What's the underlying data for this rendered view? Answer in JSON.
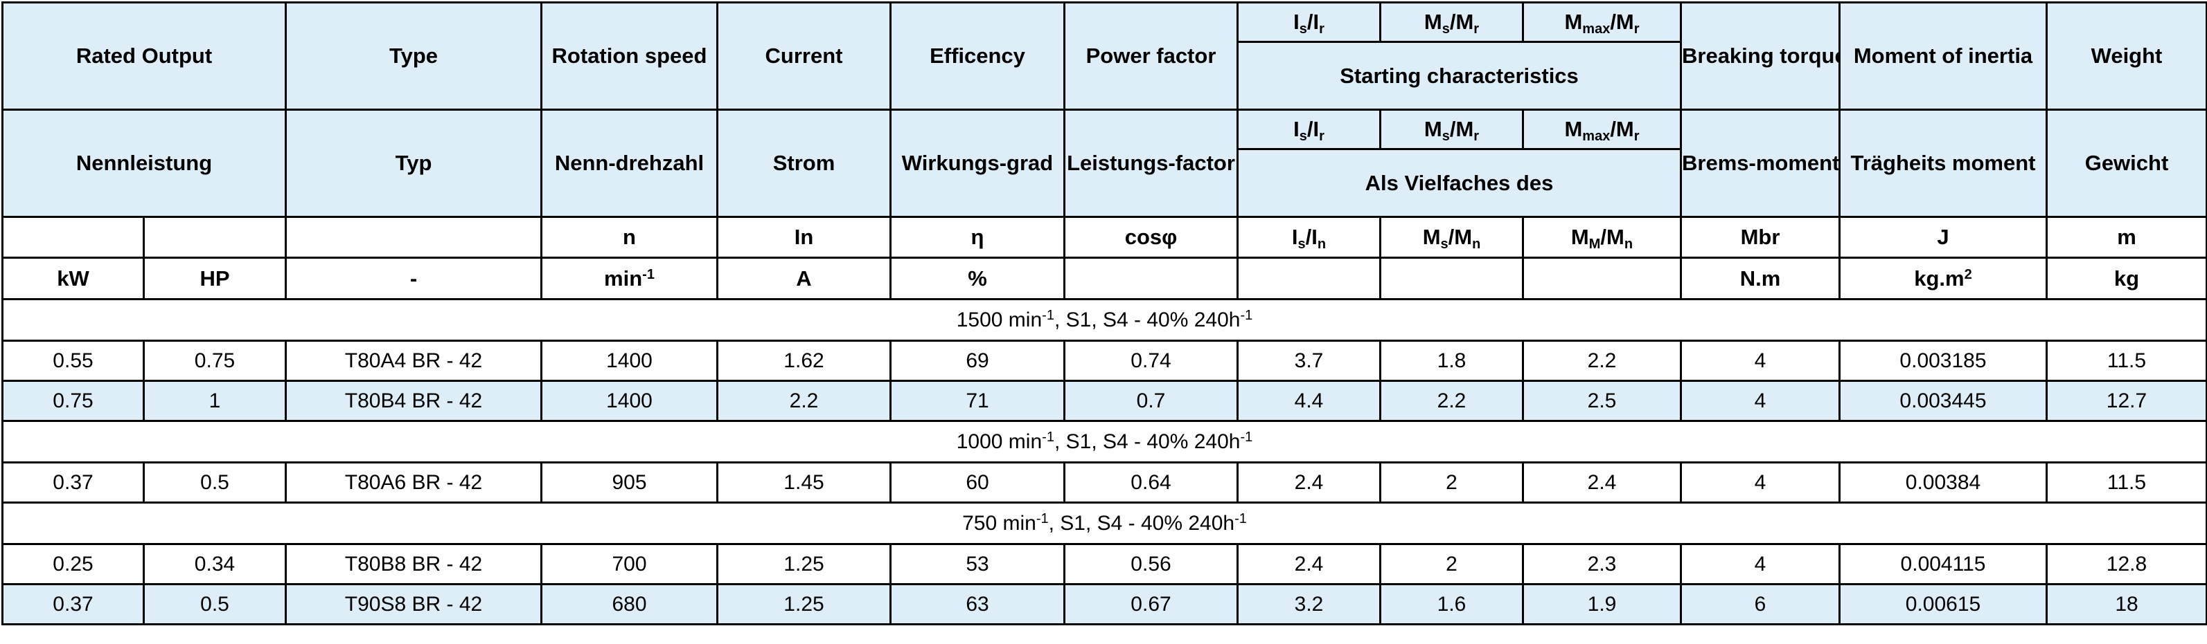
{
  "header_en": {
    "rated_output": "Rated Output",
    "type": "Type",
    "rotation_speed": "Rotation speed",
    "current": "Current",
    "efficiency": "Efficency",
    "power_factor": "Power factor",
    "ratio_is": "I",
    "ratio_is_sub1": "s",
    "ratio_is_mid": "/I",
    "ratio_is_sub2": "r",
    "ratio_ms": "M",
    "ratio_ms_sub1": "s",
    "ratio_ms_mid": "/M",
    "ratio_ms_sub2": "r",
    "ratio_mmax": "M",
    "ratio_mmax_sub1": "max",
    "ratio_mmax_mid": "/M",
    "ratio_mmax_sub2": "r",
    "starting_characteristics": "Starting characteristics",
    "breaking_torque": "Breaking torque",
    "moment_of_inertia": "Moment of inertia",
    "weight": "Weight"
  },
  "header_de": {
    "nennleistung": "Nennleistung",
    "typ": "Typ",
    "nenndrehzahl": "Nenn-drehzahl",
    "strom": "Strom",
    "wirkungsgrad": "Wirkungs-grad",
    "leistungsfactor": "Leistungs-factor",
    "als_vielfaches": "Als Vielfaches des",
    "bremsmoment": "Brems-moment",
    "traegheitsmoment": "Trägheits moment",
    "gewicht": "Gewicht"
  },
  "symbols": {
    "n": "n",
    "in": "In",
    "eta": "η",
    "cosphi": "cosφ",
    "is_in": "I",
    "is_in_sub1": "s",
    "is_in_mid": "/I",
    "is_in_sub2": "n",
    "ms_mn": "M",
    "ms_mn_sub1": "s",
    "ms_mn_mid": "/M",
    "ms_mn_sub2": "n",
    "mm_mn": "M",
    "mm_mn_sub1": "M",
    "mm_mn_mid": "/M",
    "mm_mn_sub2": "n",
    "mbr": "Mbr",
    "j": "J",
    "m": "m"
  },
  "units": {
    "kw": "kW",
    "hp": "HP",
    "type": "-",
    "speed": "min",
    "speed_sup": "-1",
    "current": "A",
    "efficiency": "%",
    "torque": "N.m",
    "inertia": "kg.m",
    "inertia_sup": "2",
    "weight": "kg"
  },
  "sections": [
    {
      "label": "1500 min",
      "label_sup": "-1",
      "label_rest": ", S1, S4 - 40% 240h",
      "label_sup2": "-1",
      "rows": [
        [
          "0.55",
          "0.75",
          "T80A4 BR - 42",
          "1400",
          "1.62",
          "69",
          "0.74",
          "3.7",
          "1.8",
          "2.2",
          "4",
          "0.003185",
          "11.5"
        ],
        [
          "0.75",
          "1",
          "T80B4 BR - 42",
          "1400",
          "2.2",
          "71",
          "0.7",
          "4.4",
          "2.2",
          "2.5",
          "4",
          "0.003445",
          "12.7"
        ]
      ]
    },
    {
      "label": "1000 min",
      "label_sup": "-1",
      "label_rest": ", S1, S4 - 40% 240h",
      "label_sup2": "-1",
      "rows": [
        [
          "0.37",
          "0.5",
          "T80A6 BR - 42",
          "905",
          "1.45",
          "60",
          "0.64",
          "2.4",
          "2",
          "2.4",
          "4",
          "0.00384",
          "11.5"
        ]
      ]
    },
    {
      "label": "750 min",
      "label_sup": "-1",
      "label_rest": ", S1, S4 - 40% 240h",
      "label_sup2": "-1",
      "rows": [
        [
          "0.25",
          "0.34",
          "T80B8 BR - 42",
          "700",
          "1.25",
          "53",
          "0.56",
          "2.4",
          "2",
          "2.3",
          "4",
          "0.004115",
          "12.8"
        ],
        [
          "0.37",
          "0.5",
          "T90S8 BR - 42",
          "680",
          "1.25",
          "63",
          "0.67",
          "3.2",
          "1.6",
          "1.9",
          "6",
          "0.00615",
          "18"
        ]
      ]
    }
  ],
  "colors": {
    "header_bg": "#ddeef9",
    "alt_row_bg": "#ddeef9",
    "border": "#000000"
  }
}
